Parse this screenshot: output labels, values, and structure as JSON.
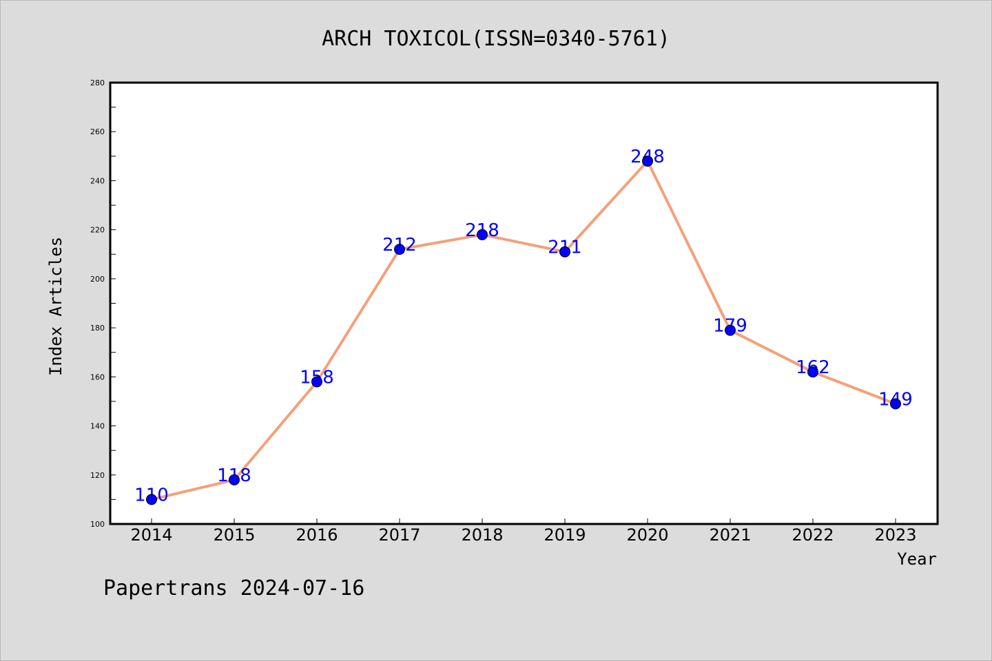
{
  "chart_data": {
    "type": "line",
    "title": "ARCH TOXICOL(ISSN=0340-5761)",
    "xlabel": "Year",
    "ylabel": "Index Articles",
    "categories": [
      "2014",
      "2015",
      "2016",
      "2017",
      "2018",
      "2019",
      "2020",
      "2021",
      "2022",
      "2023"
    ],
    "series": [
      {
        "values": [
          110,
          118,
          158,
          212,
          218,
          211,
          248,
          179,
          162,
          149
        ],
        "labels": [
          "110",
          "118",
          "158",
          "212",
          "218",
          "211",
          "248",
          "179",
          "162",
          "149"
        ],
        "line_color": "#f4a07a",
        "marker_color": "#0000ff"
      }
    ],
    "ylim": [
      100,
      280
    ],
    "yticks": [
      100,
      120,
      140,
      160,
      180,
      200,
      220,
      240,
      260,
      280
    ],
    "grid": false,
    "legend": "none"
  },
  "footer": "Papertrans 2024-07-16"
}
